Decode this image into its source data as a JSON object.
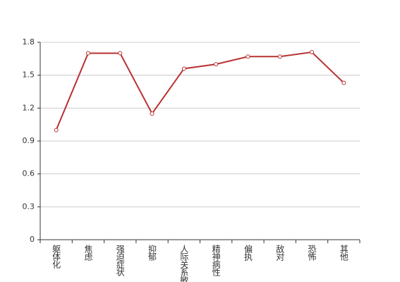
{
  "chart_data": {
    "type": "line",
    "categories": [
      "躯体化",
      "焦虑",
      "强迫症状",
      "抑郁",
      "人际关系敏感",
      "精神病性",
      "偏执",
      "敌对",
      "恐怖",
      "其他"
    ],
    "series": [
      {
        "name": "",
        "color": "#b83232",
        "values": [
          1.0,
          1.7,
          1.7,
          1.15,
          1.56,
          1.6,
          1.67,
          1.67,
          1.71,
          1.43
        ]
      }
    ],
    "ylim": [
      0,
      1.8
    ],
    "yticks": [
      0,
      0.3,
      0.6,
      0.9,
      1.2,
      1.5,
      1.8
    ],
    "grid": true
  }
}
